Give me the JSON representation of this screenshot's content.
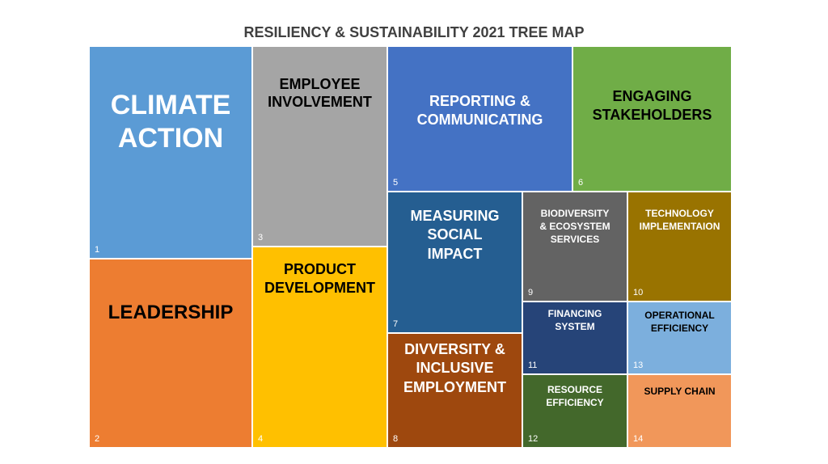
{
  "title": "RESILIENCY & SUSTAINABILITY 2021 TREE MAP",
  "tiles": [
    {
      "number": "1",
      "label": "CLIMATE\nACTION",
      "color": "#5B9BD5",
      "text_color": "#ffffff"
    },
    {
      "number": "2",
      "label": "LEADERSHIP",
      "color": "#ED7D31",
      "text_color": "#000000"
    },
    {
      "number": "3",
      "label": "EMPLOYEE\nINVOLVEMENT",
      "color": "#A5A5A5",
      "text_color": "#000000"
    },
    {
      "number": "4",
      "label": "PRODUCT\nDEVELOPMENT",
      "color": "#FFC000",
      "text_color": "#000000"
    },
    {
      "number": "5",
      "label": "REPORTING &\nCOMMUNICATING",
      "color": "#4472C4",
      "text_color": "#ffffff"
    },
    {
      "number": "6",
      "label": "ENGAGING\nSTAKEHOLDERS",
      "color": "#70AD47",
      "text_color": "#000000"
    },
    {
      "number": "7",
      "label": "MEASURING\nSOCIAL\nIMPACT",
      "color": "#255E91",
      "text_color": "#ffffff"
    },
    {
      "number": "8",
      "label": "DIVVERSITY &\nINCLUSIVE\nEMPLOYMENT",
      "color": "#9E480E",
      "text_color": "#ffffff"
    },
    {
      "number": "9",
      "label": "BIODIVERSITY\n& ECOSYSTEM\nSERVICES",
      "color": "#636363",
      "text_color": "#ffffff"
    },
    {
      "number": "10",
      "label": "TECHNOLOGY\nIMPLEMENTAION",
      "color": "#997300",
      "text_color": "#ffffff"
    },
    {
      "number": "11",
      "label": "FINANCING\nSYSTEM",
      "color": "#264478",
      "text_color": "#ffffff"
    },
    {
      "number": "12",
      "label": "RESOURCE\nEFFICIENCY",
      "color": "#43682B",
      "text_color": "#ffffff"
    },
    {
      "number": "13",
      "label": "OPERATIONAL\nEFFICIENCY",
      "color": "#7CAFDD",
      "text_color": "#000000"
    },
    {
      "number": "14",
      "label": "SUPPLY CHAIN",
      "color": "#F1975A",
      "text_color": "#000000"
    }
  ]
}
